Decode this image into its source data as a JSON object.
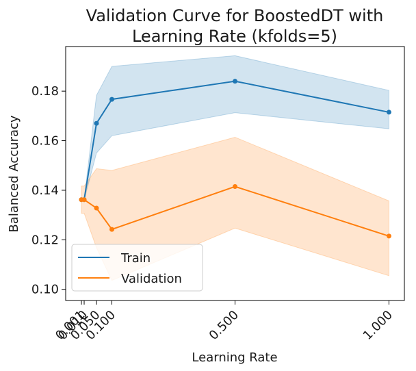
{
  "chart_data": {
    "type": "line",
    "title": [
      "Validation Curve for BoostedDT with",
      "Learning Rate (kfolds=5)"
    ],
    "xlabel": "Learning Rate",
    "ylabel": "Balanced Accuracy",
    "x": [
      0.001,
      0.01,
      0.05,
      0.1,
      0.5,
      1.0
    ],
    "xticks": [
      0.001,
      0.01,
      0.05,
      0.1,
      0.5,
      1.0
    ],
    "xtick_labels": [
      "0.001",
      "0.010",
      "0.050",
      "0.100",
      "0.500",
      "1.000"
    ],
    "yticks": [
      0.1,
      0.12,
      0.14,
      0.16,
      0.18
    ],
    "ytick_labels": [
      "0.10",
      "0.12",
      "0.14",
      "0.16",
      "0.18"
    ],
    "xlim": [
      -0.05,
      1.05
    ],
    "ylim": [
      0.0955,
      0.198
    ],
    "grid": false,
    "legend_position": "lower-left",
    "series": [
      {
        "name": "Train",
        "color": "#1f77b4",
        "values": [
          0.1362,
          0.1362,
          0.167,
          0.1767,
          0.184,
          0.1715
        ],
        "lower": [
          0.136,
          0.136,
          0.155,
          0.162,
          0.1713,
          0.1648
        ],
        "upper": [
          0.1364,
          0.1364,
          0.1783,
          0.19,
          0.1943,
          0.1803
        ]
      },
      {
        "name": "Validation",
        "color": "#ff7f0e",
        "values": [
          0.1362,
          0.1362,
          0.1328,
          0.1242,
          0.1415,
          0.1215
        ],
        "lower": [
          0.1307,
          0.1307,
          0.1168,
          0.1036,
          0.1247,
          0.1055
        ],
        "upper": [
          0.1417,
          0.1417,
          0.1487,
          0.148,
          0.1614,
          0.1357
        ]
      }
    ]
  }
}
